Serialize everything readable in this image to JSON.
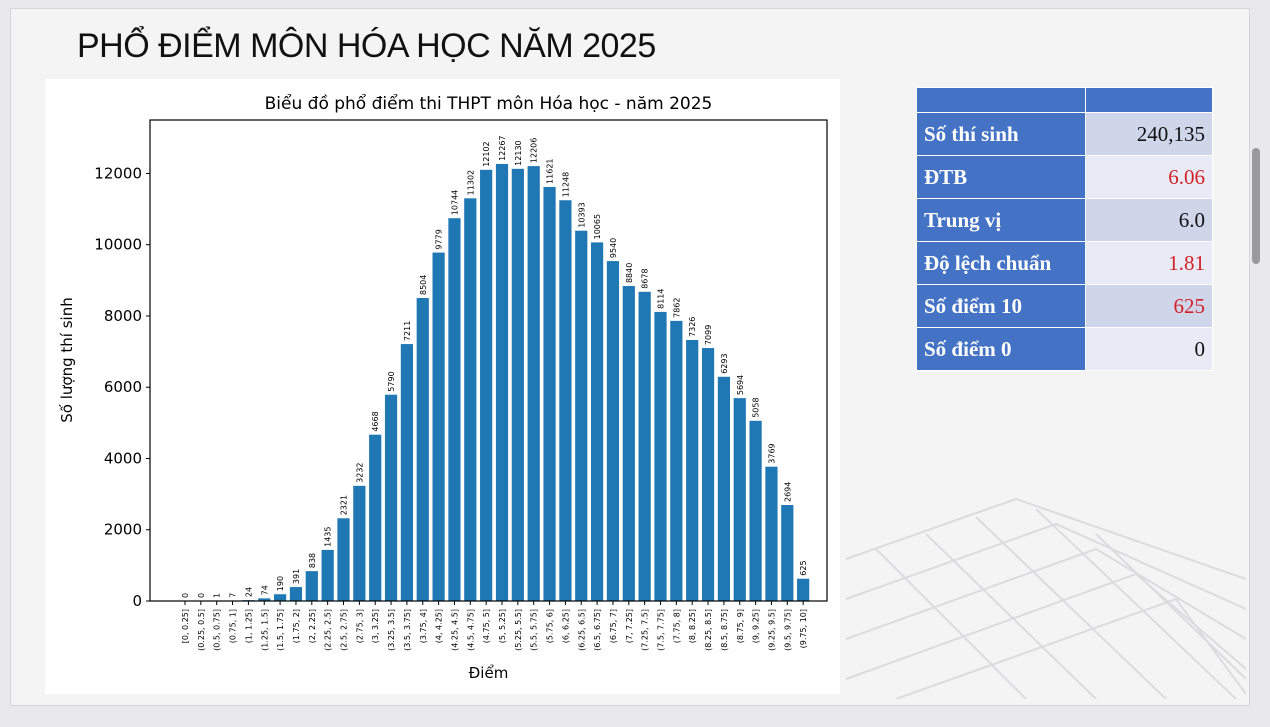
{
  "page": {
    "title": "PHỔ ĐIỂM MÔN HÓA HỌC NĂM 2025"
  },
  "chart_data": {
    "type": "bar",
    "title": "Biểu đồ phổ điểm thi THPT môn Hóa học - năm 2025",
    "xlabel": "Điểm",
    "ylabel": "Số lượng thí sinh",
    "ylim": [
      0,
      13500
    ],
    "yticks": [
      0,
      2000,
      4000,
      6000,
      8000,
      10000,
      12000
    ],
    "grid": false,
    "bar_color": "#1f77b4",
    "categories": [
      "[0, 0.25]",
      "(0.25, 0.5]",
      "(0.5, 0.75]",
      "(0.75, 1]",
      "(1, 1.25]",
      "(1.25, 1.5]",
      "(1.5, 1.75]",
      "(1.75, 2]",
      "(2, 2.25]",
      "(2.25, 2.5]",
      "(2.5, 2.75]",
      "(2.75, 3]",
      "(3, 3.25]",
      "(3.25, 3.5]",
      "(3.5, 3.75]",
      "(3.75, 4]",
      "(4, 4.25]",
      "(4.25, 4.5]",
      "(4.5, 4.75]",
      "(4.75, 5]",
      "(5, 5.25]",
      "(5.25, 5.5]",
      "(5.5, 5.75]",
      "(5.75, 6]",
      "(6, 6.25]",
      "(6.25, 6.5]",
      "(6.5, 6.75]",
      "(6.75, 7]",
      "(7, 7.25]",
      "(7.25, 7.5]",
      "(7.5, 7.75]",
      "(7.75, 8]",
      "(8, 8.25]",
      "(8.25, 8.5]",
      "(8.5, 8.75]",
      "(8.75, 9]",
      "(9, 9.25]",
      "(9.25, 9.5]",
      "(9.5, 9.75]",
      "(9.75, 10]"
    ],
    "values": [
      0,
      0,
      1,
      7,
      24,
      74,
      190,
      391,
      838,
      1435,
      2321,
      3232,
      4668,
      5790,
      7211,
      8504,
      9779,
      10744,
      11302,
      12102,
      12267,
      12130,
      12206,
      11621,
      11248,
      10393,
      10065,
      9540,
      8840,
      8678,
      8114,
      7862,
      7326,
      7099,
      6293,
      5694,
      5058,
      3769,
      2694,
      625
    ]
  },
  "stats_table": {
    "rows": [
      {
        "label": "Số thí sinh",
        "value": "240,135",
        "highlight": false
      },
      {
        "label": "ĐTB",
        "value": "6.06",
        "highlight": true
      },
      {
        "label": "Trung vị",
        "value": "6.0",
        "highlight": false
      },
      {
        "label": "Độ lệch chuẩn",
        "value": "1.81",
        "highlight": true
      },
      {
        "label": "Số điểm 10",
        "value": "625",
        "highlight": true
      },
      {
        "label": "Số điểm 0",
        "value": "0",
        "highlight": false
      }
    ]
  },
  "colors": {
    "header_blue": "#4472c4",
    "highlight_red": "#d42027"
  }
}
